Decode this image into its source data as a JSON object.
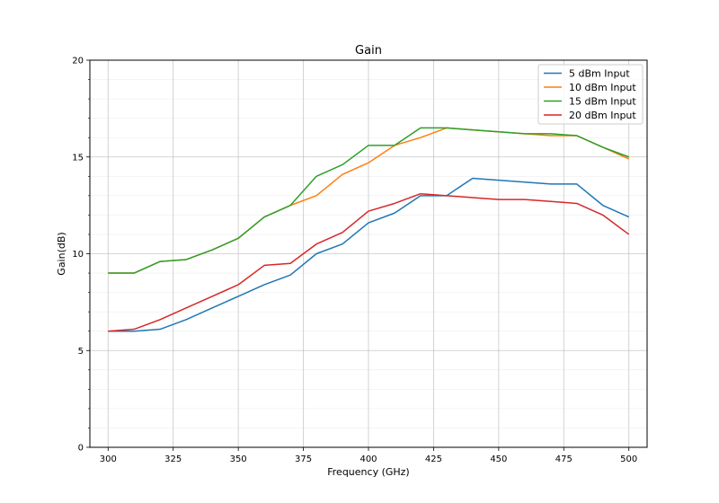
{
  "chart_data": {
    "type": "line",
    "title": "Gain",
    "xlabel": "Frequency (GHz)",
    "ylabel": "Gain(dB)",
    "xlim": [
      293,
      507
    ],
    "ylim": [
      0,
      20
    ],
    "xticks": [
      300,
      325,
      350,
      375,
      400,
      425,
      450,
      475,
      500
    ],
    "yticks": [
      0,
      5,
      10,
      15,
      20
    ],
    "grid": true,
    "legend_position": "top-right",
    "x": [
      300,
      310,
      320,
      330,
      340,
      350,
      360,
      370,
      380,
      390,
      400,
      410,
      420,
      430,
      440,
      450,
      460,
      470,
      480,
      490,
      500
    ],
    "series": [
      {
        "name": "5 dBm Input",
        "color": "#1f77b4",
        "values": [
          6.0,
          6.0,
          6.1,
          6.6,
          7.2,
          7.8,
          8.4,
          8.9,
          10.0,
          10.5,
          11.6,
          12.1,
          13.0,
          13.0,
          13.9,
          13.8,
          13.7,
          13.6,
          13.6,
          12.5,
          11.9
        ]
      },
      {
        "name": "10 dBm Input",
        "color": "#ff7f0e",
        "values": [
          9.0,
          9.0,
          9.6,
          9.7,
          10.2,
          10.8,
          11.9,
          12.5,
          13.0,
          14.1,
          14.7,
          15.6,
          16.0,
          16.5,
          16.4,
          16.3,
          16.2,
          16.1,
          16.1,
          15.5,
          14.9
        ]
      },
      {
        "name": "15 dBm Input",
        "color": "#2ca02c",
        "values": [
          9.0,
          9.0,
          9.6,
          9.7,
          10.2,
          10.8,
          11.9,
          12.5,
          14.0,
          14.6,
          15.6,
          15.6,
          16.5,
          16.5,
          16.4,
          16.3,
          16.2,
          16.2,
          16.1,
          15.5,
          15.0
        ]
      },
      {
        "name": "20 dBm Input",
        "color": "#d62728",
        "values": [
          6.0,
          6.1,
          6.6,
          7.2,
          7.8,
          8.4,
          9.4,
          9.5,
          10.5,
          11.1,
          12.2,
          12.6,
          13.1,
          13.0,
          12.9,
          12.8,
          12.8,
          12.7,
          12.6,
          12.0,
          11.0
        ]
      }
    ]
  }
}
